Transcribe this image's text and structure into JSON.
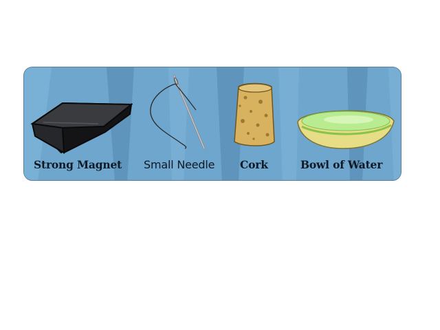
{
  "items": [
    {
      "label": "Strong Magnet",
      "icon": "magnet-icon"
    },
    {
      "label": "Small Needle",
      "icon": "needle-icon"
    },
    {
      "label": "Cork",
      "icon": "cork-icon"
    },
    {
      "label": "Bowl of Water",
      "icon": "bowl-icon"
    }
  ],
  "colors": {
    "panel_background": "#6aa2c9",
    "label_text": "#0d1a26"
  }
}
